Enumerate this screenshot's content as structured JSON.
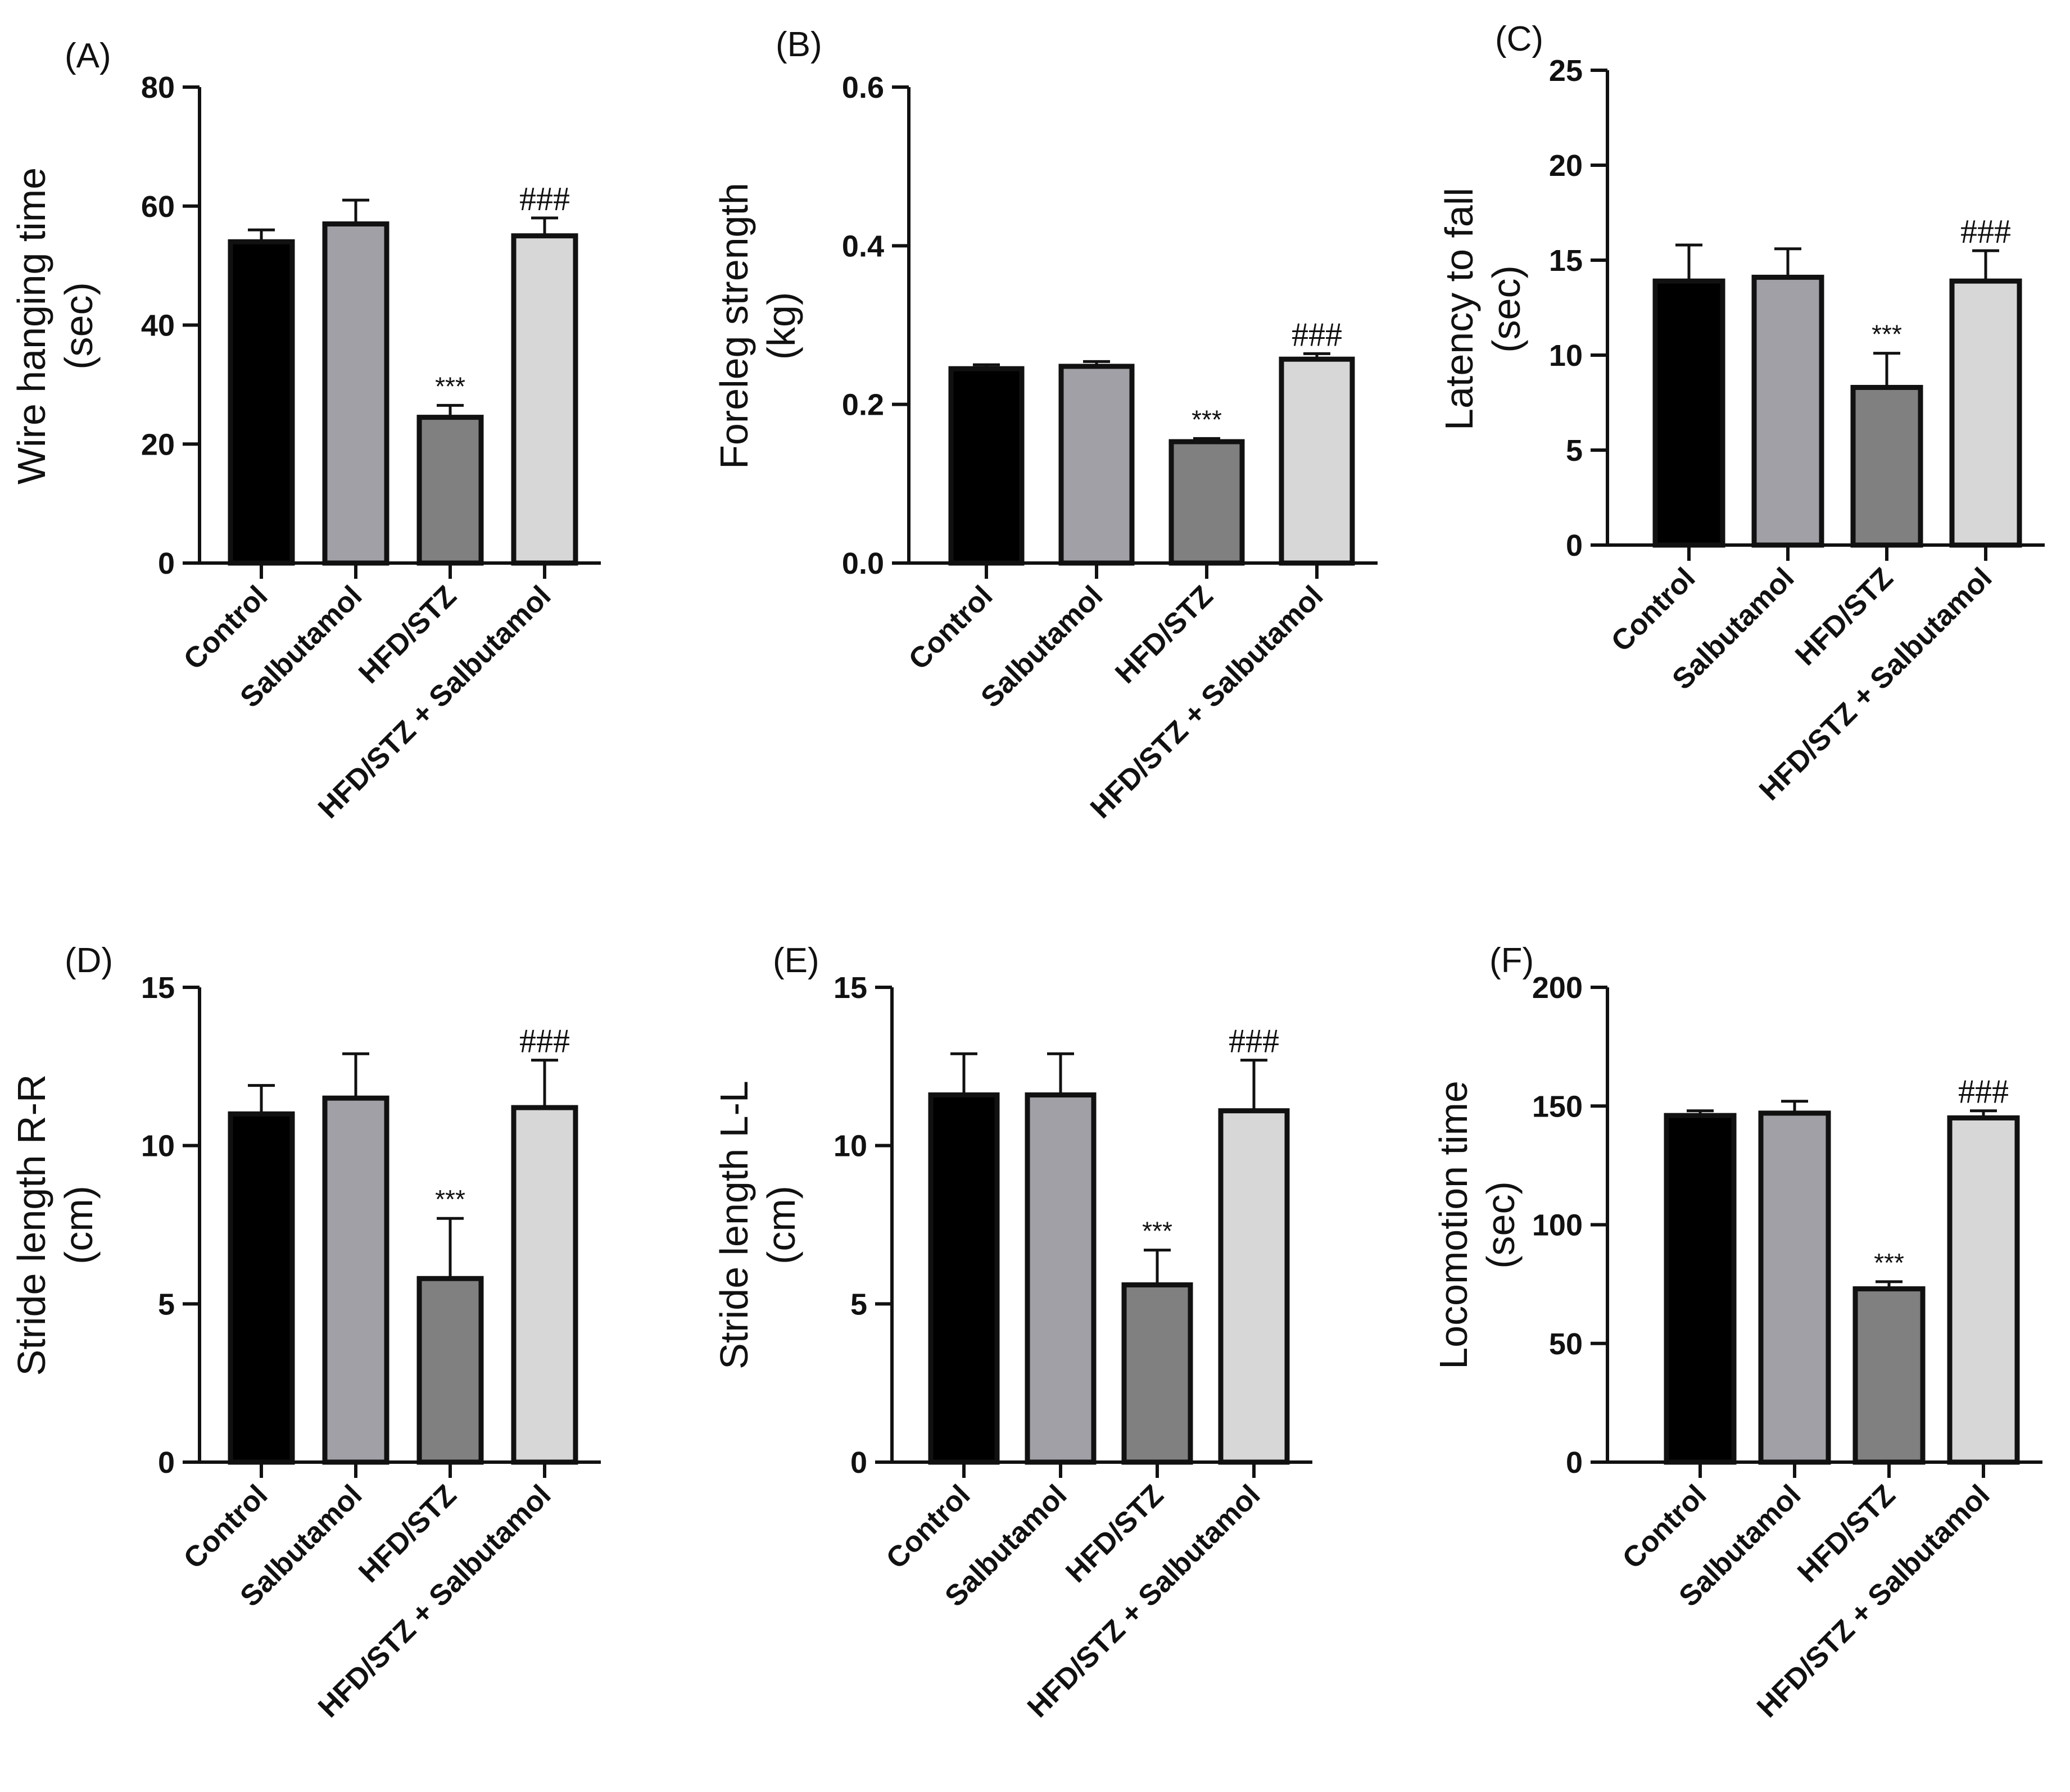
{
  "figure": {
    "group_colors": [
      "#000000",
      "#a1a0a6",
      "#808080",
      "#d7d7d7"
    ],
    "axis_color": "#111111"
  },
  "chart_data": [
    {
      "panel": "(A)",
      "type": "bar",
      "ylabel_lines": [
        "Wire hanging time",
        "(sec)"
      ],
      "categories": [
        "Control",
        "Salbutamol",
        "HFD/STZ",
        "HFD/STZ + Salbutamol"
      ],
      "values": [
        54,
        57,
        24.5,
        55
      ],
      "errors": [
        2,
        4,
        2,
        3
      ],
      "annotations": [
        "",
        "",
        "***",
        "###"
      ],
      "ylim": [
        0,
        80
      ],
      "yticks": [
        0,
        20,
        40,
        60,
        80
      ],
      "ytick_labels": [
        "0",
        "20",
        "40",
        "60",
        "80"
      ],
      "grid": false
    },
    {
      "panel": "(B)",
      "type": "bar",
      "ylabel_lines": [
        "Foreleg strength",
        "(kg)"
      ],
      "categories": [
        "Control",
        "Salbutamol",
        "HFD/STZ",
        "HFD/STZ + Salbutamol"
      ],
      "values": [
        0.245,
        0.248,
        0.153,
        0.257
      ],
      "errors": [
        0.005,
        0.006,
        0.004,
        0.007
      ],
      "annotations": [
        "",
        "",
        "***",
        "###"
      ],
      "ylim": [
        0,
        0.6
      ],
      "yticks": [
        0,
        0.2,
        0.4,
        0.6
      ],
      "ytick_labels": [
        "0.0",
        "0.2",
        "0.4",
        "0.6"
      ],
      "grid": false
    },
    {
      "panel": "(C)",
      "type": "bar",
      "ylabel_lines": [
        "Latency to fall",
        "(sec)"
      ],
      "categories": [
        "Control",
        "Salbutamol",
        "HFD/STZ",
        "HFD/STZ + Salbutamol"
      ],
      "values": [
        13.9,
        14.1,
        8.3,
        13.9
      ],
      "errors": [
        1.9,
        1.5,
        1.8,
        1.6
      ],
      "annotations": [
        "",
        "",
        "***",
        "###"
      ],
      "ylim": [
        0,
        25
      ],
      "yticks": [
        0,
        5,
        10,
        15,
        20,
        25
      ],
      "ytick_labels": [
        "0",
        "5",
        "10",
        "15",
        "20",
        "25"
      ],
      "grid": false
    },
    {
      "panel": "(D)",
      "type": "bar",
      "ylabel_lines": [
        "Stride length R-R",
        "(cm)"
      ],
      "categories": [
        "Control",
        "Salbutamol",
        "HFD/STZ",
        "HFD/STZ + Salbutamol"
      ],
      "values": [
        11,
        11.5,
        5.8,
        11.2
      ],
      "errors": [
        0.9,
        1.4,
        1.9,
        1.5
      ],
      "annotations": [
        "",
        "",
        "***",
        "###"
      ],
      "ylim": [
        0,
        15
      ],
      "yticks": [
        0,
        5,
        10,
        15
      ],
      "ytick_labels": [
        "0",
        "5",
        "10",
        "15"
      ],
      "grid": false
    },
    {
      "panel": "(E)",
      "type": "bar",
      "ylabel_lines": [
        "Stride length L-L",
        "(cm)"
      ],
      "categories": [
        "Control",
        "Salbutamol",
        "HFD/STZ",
        "HFD/STZ + Salbutamol"
      ],
      "values": [
        11.6,
        11.6,
        5.6,
        11.1
      ],
      "errors": [
        1.3,
        1.3,
        1.1,
        1.6
      ],
      "annotations": [
        "",
        "",
        "***",
        "###"
      ],
      "ylim": [
        0,
        15
      ],
      "yticks": [
        0,
        5,
        10,
        15
      ],
      "ytick_labels": [
        "0",
        "5",
        "10",
        "15"
      ],
      "grid": false
    },
    {
      "panel": "(F)",
      "type": "bar",
      "ylabel_lines": [
        "Locomotion time",
        "(sec)"
      ],
      "categories": [
        "Control",
        "Salbutamol",
        "HFD/STZ",
        "HFD/STZ + Salbutamol"
      ],
      "values": [
        146,
        147,
        73,
        145
      ],
      "errors": [
        2,
        5,
        3,
        3
      ],
      "annotations": [
        "",
        "",
        "***",
        "###"
      ],
      "ylim": [
        0,
        200
      ],
      "yticks": [
        0,
        50,
        100,
        150,
        200
      ],
      "ytick_labels": [
        "0",
        "50",
        "100",
        "150",
        "200"
      ],
      "grid": false
    }
  ]
}
